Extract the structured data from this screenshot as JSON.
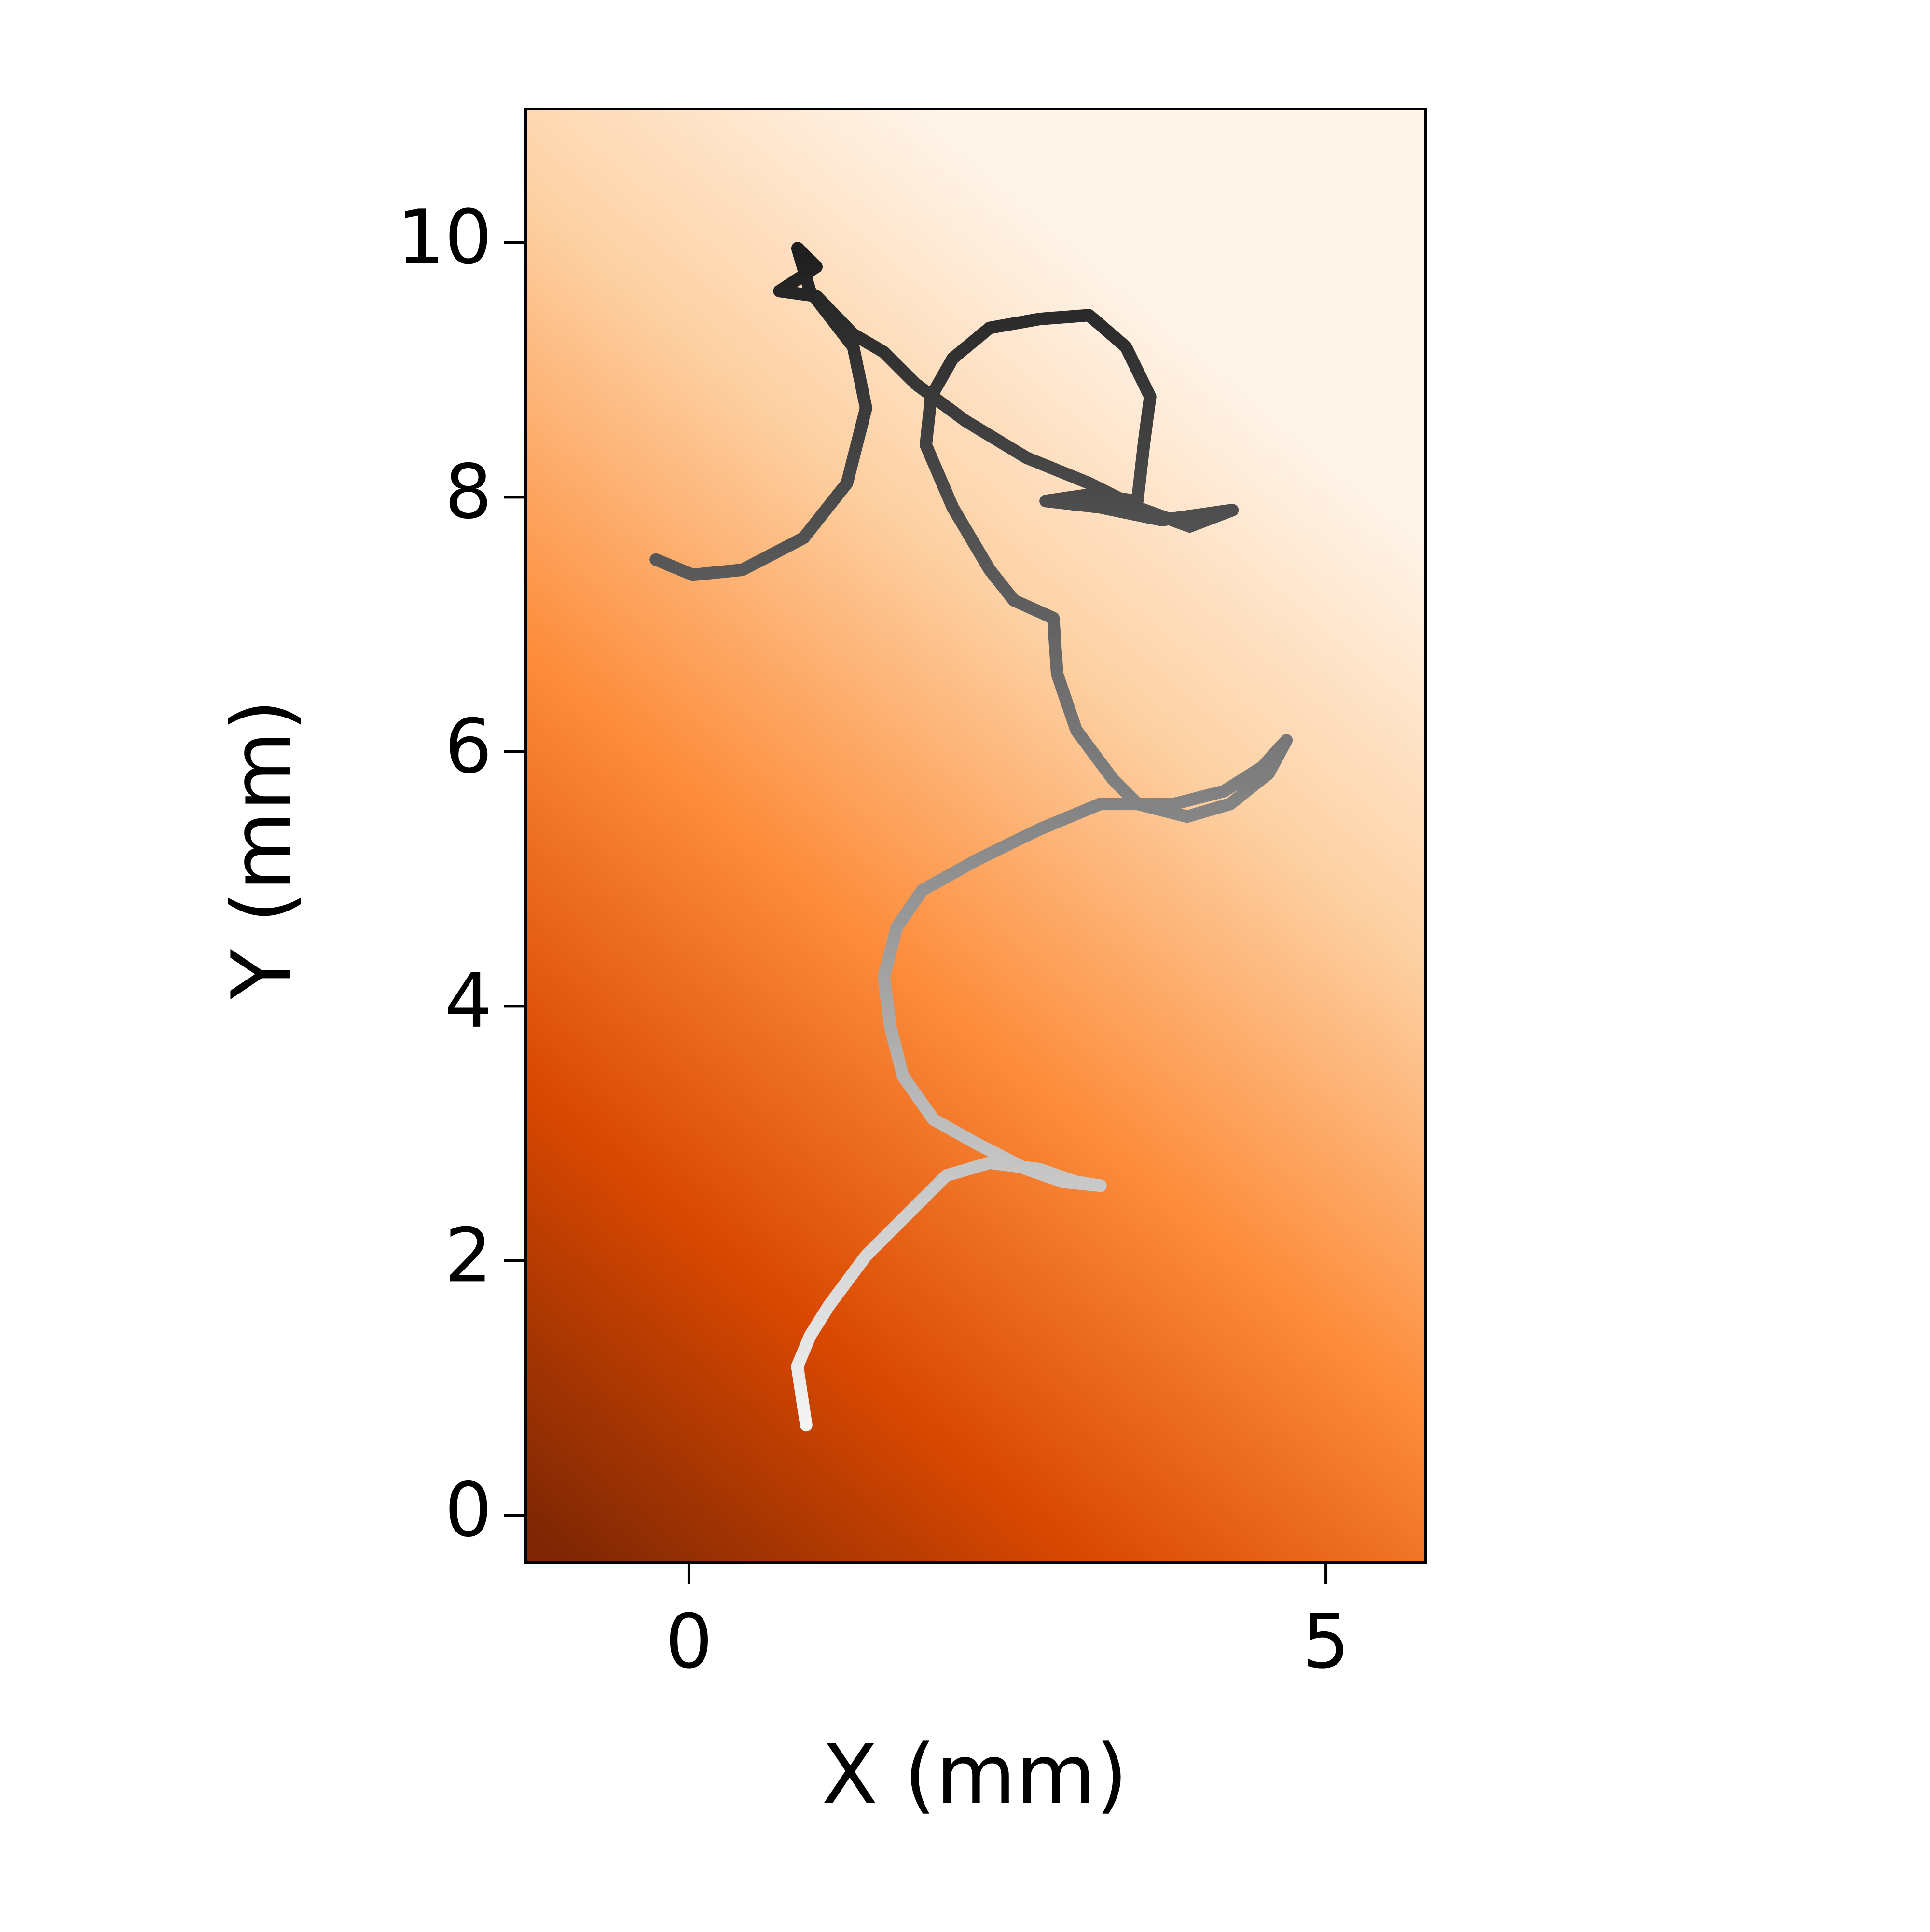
{
  "chart_data": {
    "type": "line",
    "xlabel": "X (mm)",
    "ylabel": "Y (mm)",
    "x": [
      0.92,
      0.85,
      0.95,
      1.1,
      1.39,
      1.68,
      2.02,
      2.36,
      2.75,
      3.04,
      3.23,
      2.94,
      2.65,
      2.26,
      1.92,
      1.68,
      1.58,
      1.53,
      1.63,
      1.83,
      2.26,
      2.75,
      3.23,
      3.81,
      4.2,
      4.5,
      4.69,
      4.55,
      4.25,
      3.91,
      3.52,
      3.33,
      3.04,
      2.89,
      2.86,
      2.55,
      2.36,
      2.07,
      1.86,
      1.9,
      2.07,
      2.36,
      2.75,
      3.14,
      3.43,
      3.62,
      3.57,
      3.52,
      3.14,
      2.8,
      3.23,
      3.71,
      4.27,
      3.93,
      3.52,
      3.14,
      2.65,
      2.17,
      1.78,
      1.53,
      1.29,
      1.0,
      0.71,
      1.0,
      0.85,
      0.95,
      1.29,
      1.39,
      1.24,
      0.9,
      0.42,
      0.03,
      -0.26
    ],
    "y": [
      0.71,
      1.17,
      1.41,
      1.65,
      2.04,
      2.33,
      2.67,
      2.77,
      2.72,
      2.62,
      2.59,
      2.62,
      2.72,
      2.92,
      3.11,
      3.45,
      3.84,
      4.23,
      4.62,
      4.91,
      5.15,
      5.39,
      5.59,
      5.59,
      5.69,
      5.88,
      6.09,
      5.83,
      5.59,
      5.49,
      5.59,
      5.78,
      6.17,
      6.61,
      7.05,
      7.19,
      7.43,
      7.92,
      8.41,
      8.79,
      9.09,
      9.33,
      9.4,
      9.43,
      9.18,
      8.79,
      8.41,
      7.97,
      8.02,
      7.97,
      7.92,
      7.82,
      7.9,
      7.77,
      7.92,
      8.11,
      8.31,
      8.6,
      8.89,
      9.14,
      9.28,
      9.58,
      9.62,
      9.81,
      9.96,
      9.62,
      9.18,
      8.7,
      8.11,
      7.68,
      7.43,
      7.39,
      7.51
    ],
    "line_colors": [
      "#f4f4f4",
      "#1e1e1e"
    ],
    "background_colors": [
      "#7f2704",
      "#d94801",
      "#fd8d3c",
      "#fdd0a2",
      "#fff5eb"
    ],
    "xlim": [
      -1.28,
      5.78
    ],
    "ylim": [
      -0.37,
      11.05
    ],
    "xticks": [
      0,
      5
    ],
    "yticks": [
      0,
      2,
      4,
      6,
      8,
      10
    ]
  }
}
